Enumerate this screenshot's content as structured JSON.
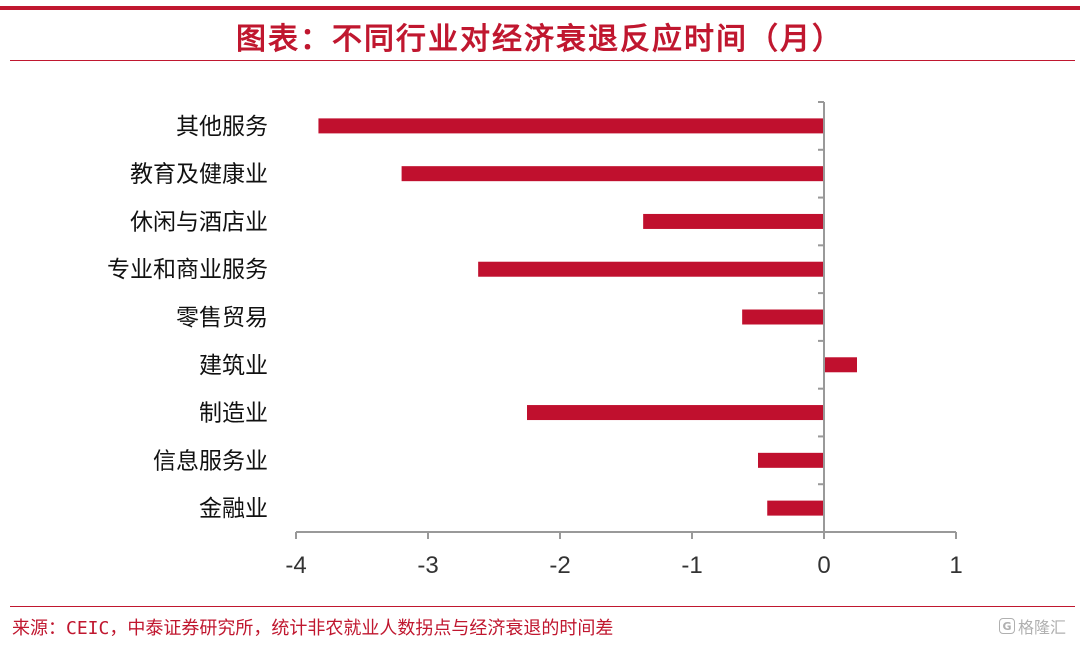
{
  "header": {
    "title": "图表：不同行业对经济衰退反应时间（月）"
  },
  "footer": {
    "source": "来源：CEIC，中泰证券研究所，统计非农就业人数拐点与经济衰退的时间差",
    "watermark": "格隆汇",
    "watermark_icon": "g-logo-icon"
  },
  "colors": {
    "accent": "#c0172f",
    "bar": "#c0102e",
    "axis": "#999999"
  },
  "chart_data": {
    "type": "bar",
    "orientation": "horizontal",
    "title": "图表：不同行业对经济衰退反应时间（月）",
    "categories": [
      "其他服务",
      "教育及健康业",
      "休闲与酒店业",
      "专业和商业服务",
      "零售贸易",
      "建筑业",
      "制造业",
      "信息服务业",
      "金融业"
    ],
    "values": [
      -3.83,
      -3.2,
      -1.37,
      -2.62,
      -0.62,
      0.25,
      -2.25,
      -0.5,
      -0.43
    ],
    "xlim": [
      -4,
      1
    ],
    "xticks": [
      -4,
      -3,
      -2,
      -1,
      0,
      1
    ],
    "xtick_labels": [
      "-4",
      "-3",
      "-2",
      "-1",
      "0",
      "1"
    ],
    "grid": false,
    "legend": "none"
  }
}
